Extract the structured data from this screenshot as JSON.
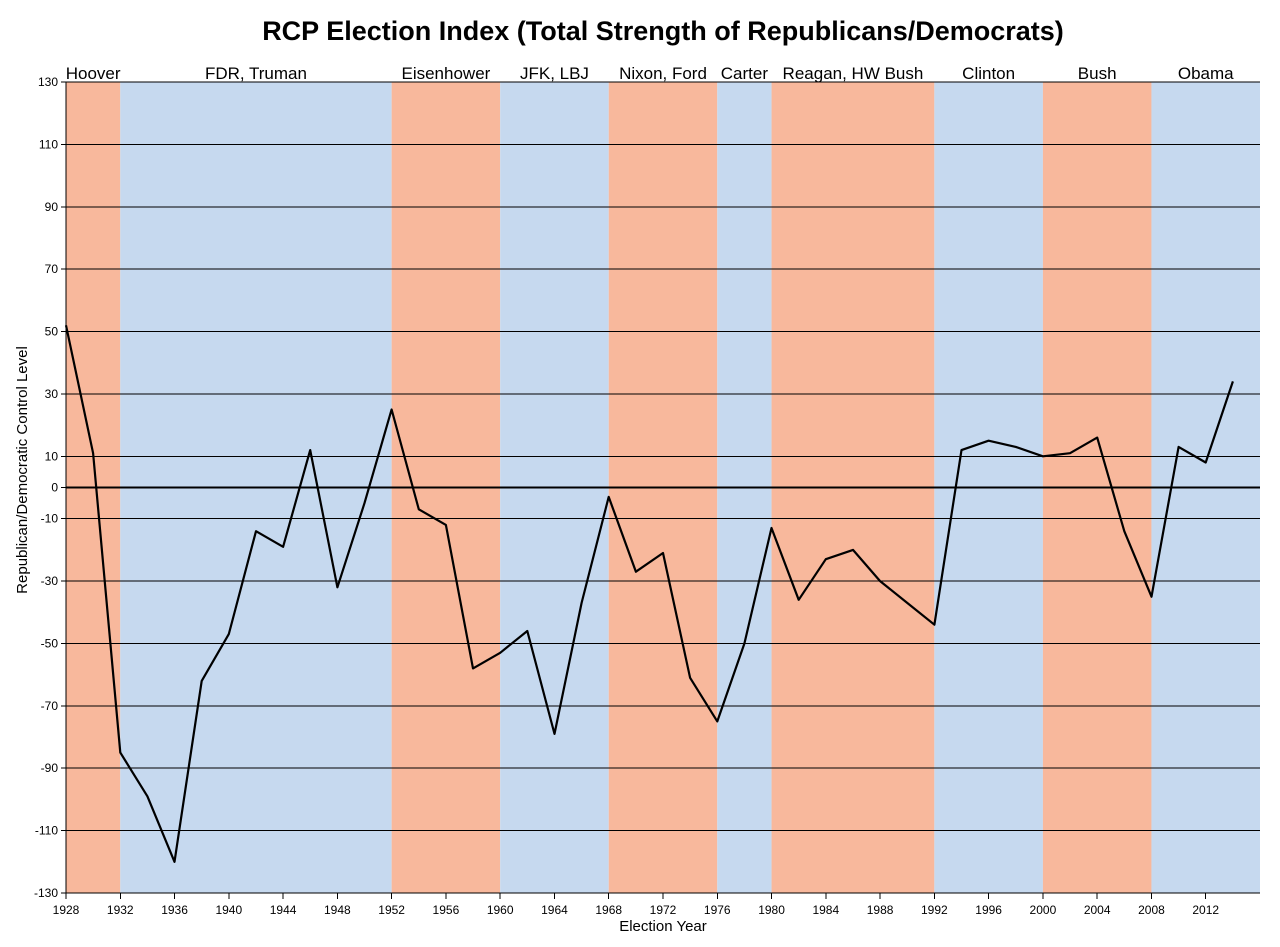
{
  "chart_data": {
    "type": "line",
    "title": "RCP Election Index (Total Strength of Republicans/Democrats)",
    "xlabel": "Election Year",
    "ylabel": "Republican/Democratic Control Level",
    "xlim": [
      1928,
      2016
    ],
    "ylim": [
      -130,
      130
    ],
    "x_ticks": [
      1928,
      1932,
      1936,
      1940,
      1944,
      1948,
      1952,
      1956,
      1960,
      1964,
      1968,
      1972,
      1976,
      1980,
      1984,
      1988,
      1992,
      1996,
      2000,
      2004,
      2008,
      2012
    ],
    "y_ticks": [
      130,
      110,
      90,
      70,
      50,
      30,
      10,
      0,
      -10,
      -30,
      -50,
      -70,
      -90,
      -110,
      -130
    ],
    "grid": "horizontal",
    "zero_line": true,
    "eras": [
      {
        "label": "Hoover",
        "start": 1928,
        "end": 1932,
        "party": "Republican"
      },
      {
        "label": "FDR, Truman",
        "start": 1932,
        "end": 1952,
        "party": "Democratic"
      },
      {
        "label": "Eisenhower",
        "start": 1952,
        "end": 1960,
        "party": "Republican"
      },
      {
        "label": "JFK, LBJ",
        "start": 1960,
        "end": 1968,
        "party": "Democratic"
      },
      {
        "label": "Nixon, Ford",
        "start": 1968,
        "end": 1976,
        "party": "Republican"
      },
      {
        "label": "Carter",
        "start": 1976,
        "end": 1980,
        "party": "Democratic"
      },
      {
        "label": "Reagan, HW Bush",
        "start": 1980,
        "end": 1992,
        "party": "Republican"
      },
      {
        "label": "Clinton",
        "start": 1992,
        "end": 2000,
        "party": "Democratic"
      },
      {
        "label": "Bush",
        "start": 2000,
        "end": 2008,
        "party": "Republican"
      },
      {
        "label": "Obama",
        "start": 2008,
        "end": 2016,
        "party": "Democratic"
      }
    ],
    "colors": {
      "Republican": "#F8B89C",
      "Democratic": "#C6D9EF",
      "line": "#000000",
      "grid": "#000000"
    },
    "series": [
      {
        "x": [
          1928,
          1930,
          1932,
          1934,
          1936,
          1938,
          1940,
          1942,
          1944,
          1946,
          1948,
          1950,
          1952,
          1954,
          1956,
          1958,
          1960,
          1962,
          1964,
          1966,
          1968,
          1970,
          1972,
          1974,
          1976,
          1978,
          1980,
          1982,
          1984,
          1986,
          1988,
          1990,
          1992,
          1994,
          1996,
          1998,
          2000,
          2002,
          2004,
          2006,
          2008,
          2010,
          2012,
          2014
        ],
        "values": [
          52,
          11,
          -85,
          -99,
          -120,
          -62,
          -47,
          -14,
          -19,
          12,
          -32,
          -5,
          25,
          -7,
          -12,
          -58,
          -53,
          -46,
          -79,
          -37,
          -3,
          -27,
          -21,
          -61,
          -75,
          -50,
          -13,
          -36,
          -23,
          -20,
          -30,
          -37,
          -44,
          12,
          15,
          13,
          10,
          11,
          16,
          -14,
          -35,
          13,
          8,
          34
        ]
      }
    ]
  }
}
